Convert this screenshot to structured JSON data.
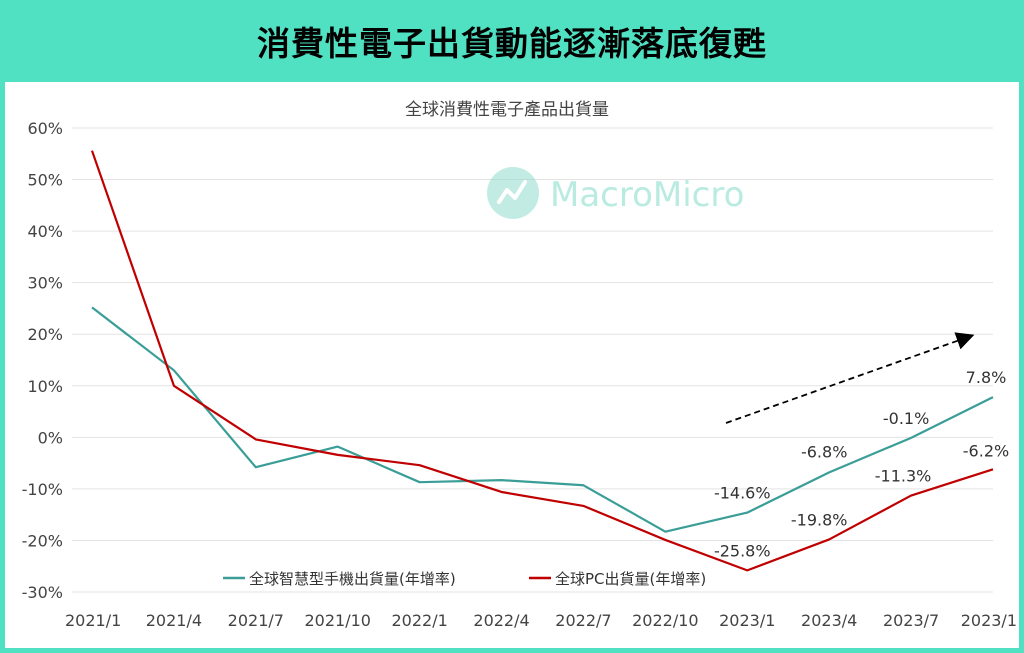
{
  "banner": {
    "title": "消費性電子出貨動能逐漸落底復甦"
  },
  "watermark": {
    "text": "MacroMicro",
    "color": "#b9ebe0"
  },
  "chart_data": {
    "type": "line",
    "title": "全球消費性電子產品出貨量",
    "categories": [
      "2021/1",
      "2021/4",
      "2021/7",
      "2021/10",
      "2022/1",
      "2022/4",
      "2022/7",
      "2022/10",
      "2023/1",
      "2023/4",
      "2023/7",
      "2023/1"
    ],
    "y_ticks": [
      "60%",
      "50%",
      "40%",
      "30%",
      "20%",
      "10%",
      "0%",
      "-10%",
      "-20%",
      "-30%"
    ],
    "ylim": [
      -30,
      60
    ],
    "grid": true,
    "legend_position": "bottom-center",
    "series": [
      {
        "name": "全球智慧型手機出貨量(年增率)",
        "color": "#3a9e97",
        "values": [
          25.2,
          13.0,
          -5.8,
          -1.8,
          -8.7,
          -8.3,
          -9.3,
          -18.3,
          -14.6,
          -6.8,
          -0.1,
          7.8
        ],
        "labels": [
          "",
          "",
          "",
          "",
          "",
          "",
          "",
          "",
          "-14.6%",
          "-6.8%",
          "-0.1%",
          "7.8%"
        ]
      },
      {
        "name": "全球PC出貨量(年增率)",
        "color": "#c00000",
        "values": [
          55.6,
          10.0,
          -0.4,
          -3.4,
          -5.4,
          -10.6,
          -13.3,
          -19.9,
          -25.8,
          -19.8,
          -11.3,
          -6.2
        ],
        "labels": [
          "",
          "",
          "",
          "",
          "",
          "",
          "",
          "",
          "-25.8%",
          "-19.8%",
          "-11.3%",
          "-6.2%"
        ]
      }
    ],
    "annotation": {
      "type": "trend-arrow",
      "color": "#000000"
    }
  }
}
